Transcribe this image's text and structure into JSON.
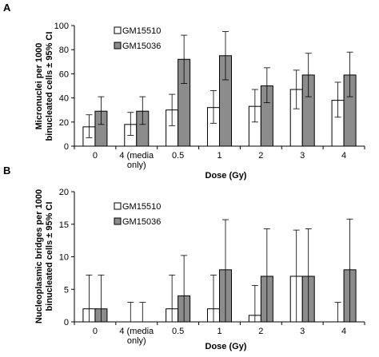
{
  "chart_data": [
    {
      "panel": "A",
      "type": "bar",
      "ylabel_lines": [
        "Micronuclei per 1000",
        "binucleated cells ± 95% CI"
      ],
      "xlabel": "Dose (Gy)",
      "ylim": [
        0,
        100
      ],
      "yticks": [
        "0",
        "20",
        "40",
        "60",
        "80",
        "100"
      ],
      "categories": [
        [
          "0"
        ],
        [
          "4 (media",
          "only)"
        ],
        [
          "0.5"
        ],
        [
          "1"
        ],
        [
          "2"
        ],
        [
          "3"
        ],
        [
          "4"
        ]
      ],
      "legend_position": "top-left",
      "series": [
        {
          "name": "GM15510",
          "color": "#ffffff",
          "values": [
            16,
            18,
            30,
            32,
            33,
            47,
            38
          ],
          "ci_upper": [
            26,
            28,
            43,
            46,
            47,
            63,
            53
          ],
          "ci_lower": [
            7,
            9,
            17,
            19,
            20,
            31,
            24
          ]
        },
        {
          "name": "GM15036",
          "color": "#8c8c8c",
          "values": [
            29,
            29,
            72,
            75,
            50,
            59,
            59
          ],
          "ci_upper": [
            41,
            41,
            92,
            95,
            65,
            77,
            78
          ],
          "ci_lower": [
            18,
            18,
            52,
            55,
            36,
            41,
            41
          ]
        }
      ]
    },
    {
      "panel": "B",
      "type": "bar",
      "ylabel_lines": [
        "Nucleoplasmic bridges per 1000",
        "binucleated cells ± 95% CI"
      ],
      "xlabel": "Dose (Gy)",
      "ylim": [
        0,
        20
      ],
      "yticks": [
        "0",
        "5",
        "10",
        "15",
        "20"
      ],
      "categories": [
        [
          "0"
        ],
        [
          "4 (media",
          "only)"
        ],
        [
          "0.5"
        ],
        [
          "1"
        ],
        [
          "2"
        ],
        [
          "3"
        ],
        [
          "4"
        ]
      ],
      "legend_position": "top-left",
      "series": [
        {
          "name": "GM15510",
          "color": "#ffffff",
          "values": [
            2,
            0,
            2,
            2,
            1,
            7,
            0
          ],
          "ci_upper": [
            7.2,
            3,
            7.2,
            7.2,
            5.6,
            14.1,
            3
          ],
          "ci_lower": [
            0,
            0,
            0,
            0,
            0,
            0,
            0
          ]
        },
        {
          "name": "GM15036",
          "color": "#8c8c8c",
          "values": [
            2,
            0,
            4,
            8,
            7,
            7,
            8
          ],
          "ci_upper": [
            7.2,
            3,
            10.2,
            15.7,
            14.3,
            14.3,
            15.8
          ],
          "ci_lower": [
            0,
            0,
            0,
            0,
            0,
            0,
            0
          ]
        }
      ]
    }
  ]
}
